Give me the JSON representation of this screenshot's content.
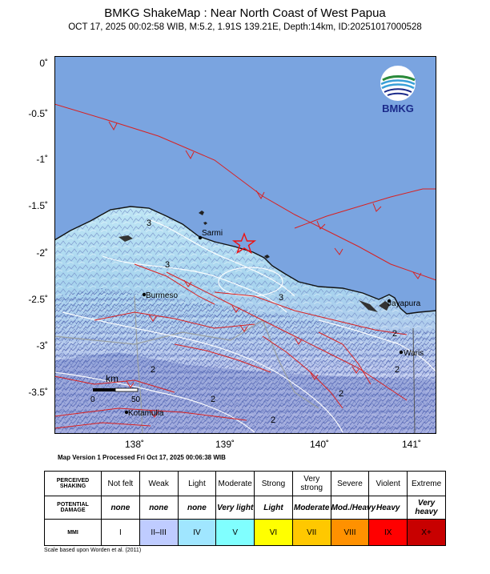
{
  "header": {
    "title": "BMKG ShakeMap : Near North Coast of West Papua",
    "subtitle": "OCT 17, 2025 00:02:58 WIB, M:5.2, 1.91S 139.21E, Depth:14km, ID:20251017000528"
  },
  "logo": {
    "text": "BMKG",
    "icon": "bmkg-globe-icon"
  },
  "axes": {
    "y_ticks": [
      "0˚",
      "-0.5˚",
      "-1˚",
      "-1.5˚",
      "-2˚",
      "-2.5˚",
      "-3˚",
      "-3.5˚"
    ],
    "x_ticks": [
      "138˚",
      "139˚",
      "140˚",
      "141˚"
    ]
  },
  "places": {
    "sarmi": "Sarmi",
    "burmeso": "Burmeso",
    "jayapura": "Jayapura",
    "waris": "Waris",
    "kotamulia": "Kotamulia"
  },
  "contours": [
    "3",
    "3",
    "3",
    "2",
    "2",
    "2",
    "2",
    "2",
    "2"
  ],
  "scalebar": {
    "unit": "km",
    "start": "0",
    "end": "50"
  },
  "processed": "Map Version 1 Processed Fri Oct 17, 2025 00:06:38 WIB",
  "legend": {
    "row_headers": [
      "PERCEIVED SHAKING",
      "POTENTIAL DAMAGE",
      "MMI"
    ],
    "shaking": [
      "Not felt",
      "Weak",
      "Light",
      "Moderate",
      "Strong",
      "Very strong",
      "Severe",
      "Violent",
      "Extreme"
    ],
    "damage": [
      "none",
      "none",
      "none",
      "Very light",
      "Light",
      "Moderate",
      "Mod./Heavy",
      "Heavy",
      "Very heavy"
    ],
    "mmi": [
      "I",
      "II–III",
      "IV",
      "V",
      "VI",
      "VII",
      "VIII",
      "IX",
      "X+"
    ],
    "colors": [
      "#ffffff",
      "#bfccff",
      "#a0e6ff",
      "#80ffff",
      "#ffff00",
      "#ffc800",
      "#ff9100",
      "#ff0000",
      "#c80000"
    ]
  },
  "footnote": "Scale based upon Worden et al. (2011)",
  "colors": {
    "sea": "#7aa4e0",
    "fault": "#d92020",
    "epicenter": "#ee1111"
  }
}
